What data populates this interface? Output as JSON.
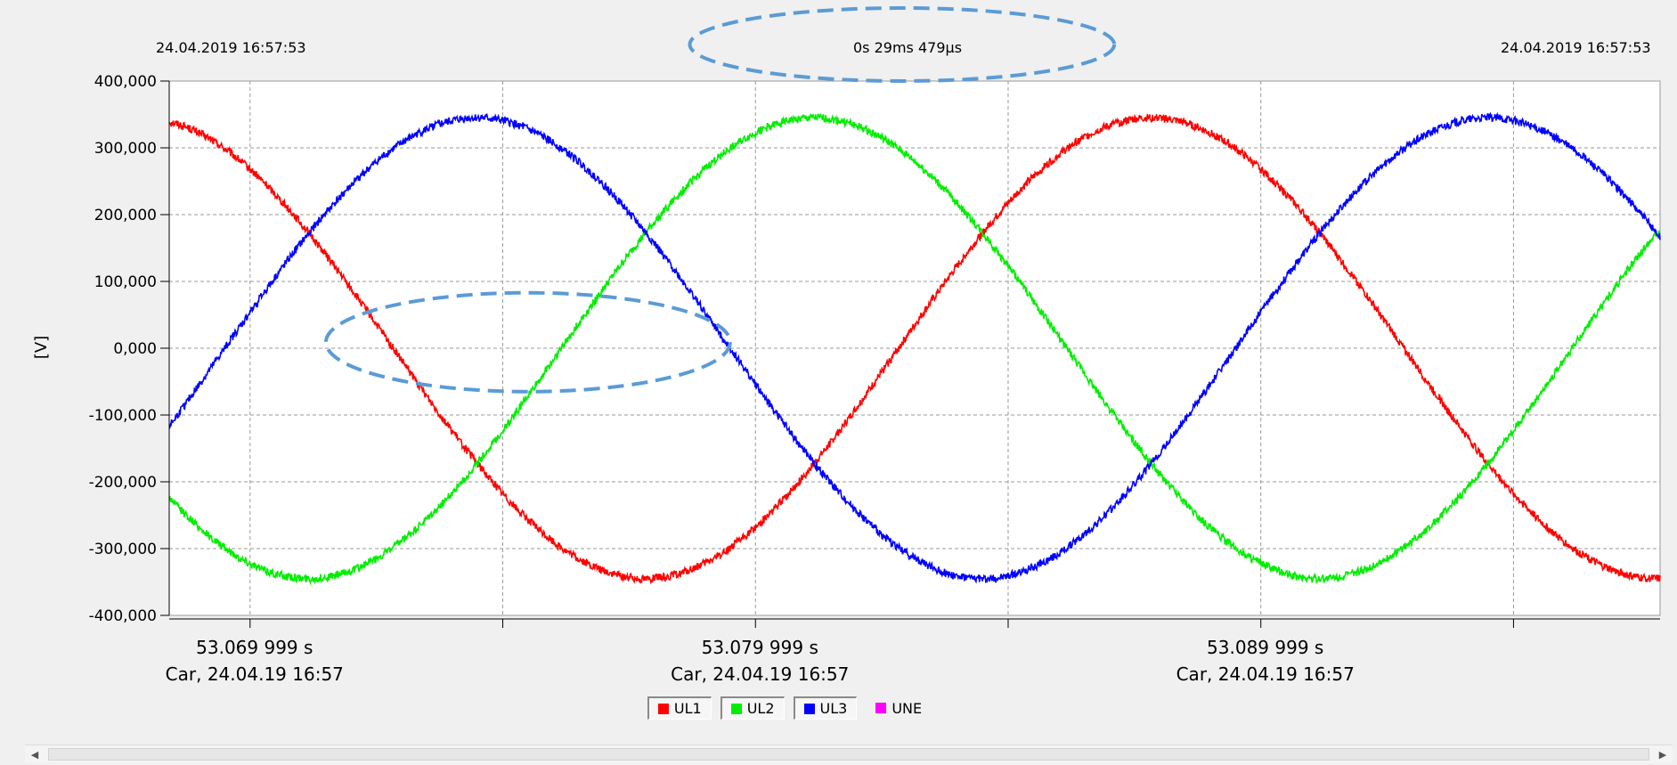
{
  "header": {
    "start_timestamp": "24.04.2019 16:57:53",
    "duration": "0s 29ms 479µs",
    "end_timestamp": "24.04.2019 16:57:53"
  },
  "colors": {
    "UL1": "#ff0000",
    "UL2": "#00ee00",
    "UL3": "#0000ff",
    "UNE": "#ff00ff",
    "annotation": "#5b9bd5"
  },
  "legend": [
    {
      "name": "UL1",
      "color": "#ff0000",
      "pressed": true
    },
    {
      "name": "UL2",
      "color": "#00ee00",
      "pressed": true
    },
    {
      "name": "UL3",
      "color": "#0000ff",
      "pressed": true
    },
    {
      "name": "UNE",
      "color": "#ff00ff",
      "pressed": false
    }
  ],
  "chart_data": {
    "type": "line",
    "ylabel": "[V]",
    "ylim": [
      -400,
      400
    ],
    "y_ticks": [
      400,
      300,
      200,
      100,
      0,
      -100,
      -200,
      -300,
      -400
    ],
    "y_tick_labels": [
      "400,000",
      "300,000",
      "200,000",
      "100,000",
      "0,000",
      "-100,000",
      "-200,000",
      "-300,000",
      "-400,000"
    ],
    "xlim_ms": [
      68.4,
      97.9
    ],
    "x_major_ticks_ms": [
      70,
      80,
      90
    ],
    "x_minor_ticks_ms": [
      75,
      85,
      95
    ],
    "x_tick_labels": [
      {
        "line1": "53.069 999 s",
        "line2": "Car, 24.04.19 16:57"
      },
      {
        "line1": "53.079 999 s",
        "line2": "Car, 24.04.19 16:57"
      },
      {
        "line1": "53.089 999 s",
        "line2": "Car, 24.04.19 16:57"
      }
    ],
    "grid": true,
    "legend_position": "bottom-center",
    "series": [
      {
        "name": "UL1",
        "amplitude": 345,
        "frequency_hz": 50,
        "peak_times_ms": [
          87.83
        ],
        "noise": 6
      },
      {
        "name": "UL2",
        "amplitude": 345,
        "frequency_hz": 50,
        "peak_times_ms": [
          81.16
        ],
        "noise": 6
      },
      {
        "name": "UL3",
        "amplitude": 345,
        "frequency_hz": 50,
        "peak_times_ms": [
          74.5,
          94.5
        ],
        "noise": 6
      }
    ],
    "annotations": [
      {
        "label": "duration-highlight",
        "cx_ms": 82.9,
        "cy": 446,
        "rx_ms": 4.2,
        "ry": 52,
        "in_header": true
      },
      {
        "label": "zero-crossing-highlight",
        "cx_ms": 75.5,
        "cy": 9,
        "rx_ms": 4.0,
        "ry": 74
      }
    ]
  }
}
